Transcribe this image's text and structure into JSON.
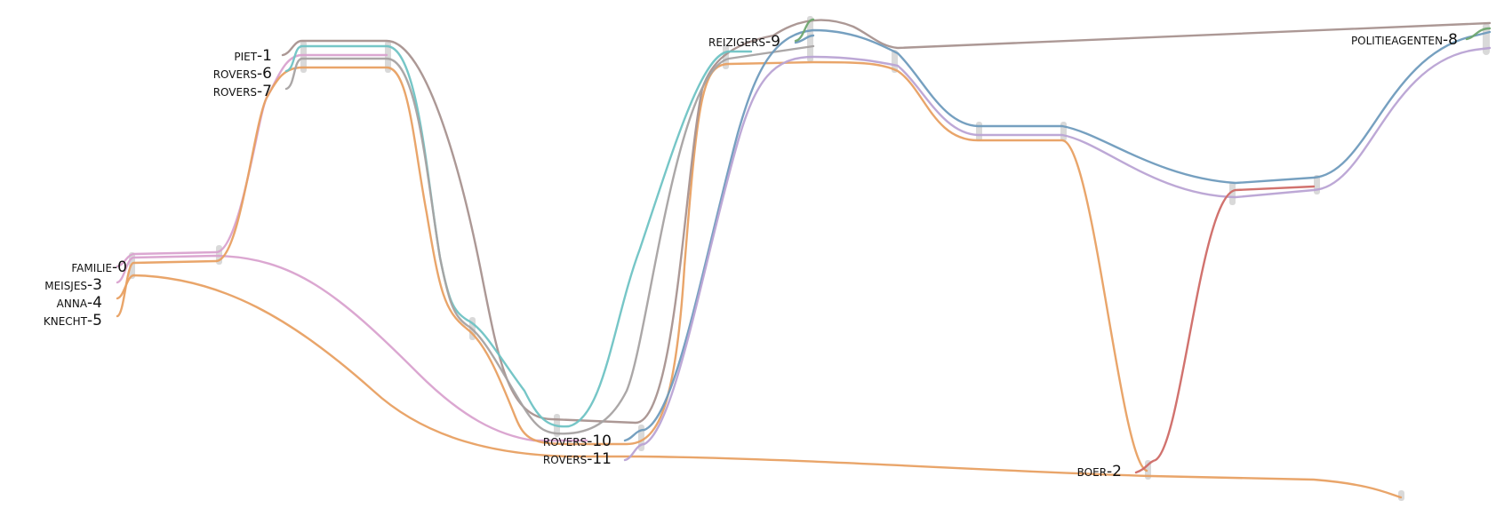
{
  "characters": [
    {
      "label": "familie-0",
      "color": "#d9a2cf"
    },
    {
      "label": "piet-1",
      "color": "#a8928f"
    },
    {
      "label": "boer-2",
      "color": "#cf6a66"
    },
    {
      "label": "meisjes-3",
      "color": "#d9a2cf"
    },
    {
      "label": "anna-4",
      "color": "#e8a062"
    },
    {
      "label": "knecht-5",
      "color": "#b9a3d4"
    },
    {
      "label": "rovers-6",
      "color": "#6fc3c4"
    },
    {
      "label": "rovers-7",
      "color": "#a6a2a2"
    },
    {
      "label": "politieagenten-8",
      "color": "#6fa66f"
    },
    {
      "label": "reizigers-9",
      "color": "#6f9bbd"
    },
    {
      "label": "rovers-10",
      "color": "#6f9bbd"
    },
    {
      "label": "rovers-11",
      "color": "#b9a3d4"
    }
  ],
  "colors": {
    "pink": "#d9a2cf",
    "orange": "#e8a062",
    "brown": "#a8928f",
    "teal": "#6fc3c4",
    "gray": "#a6a2a2",
    "blue": "#6f9bbd",
    "purple": "#b9a3d4",
    "green": "#6fa66f",
    "red": "#cf6a66",
    "node": "#cfcfcf"
  }
}
